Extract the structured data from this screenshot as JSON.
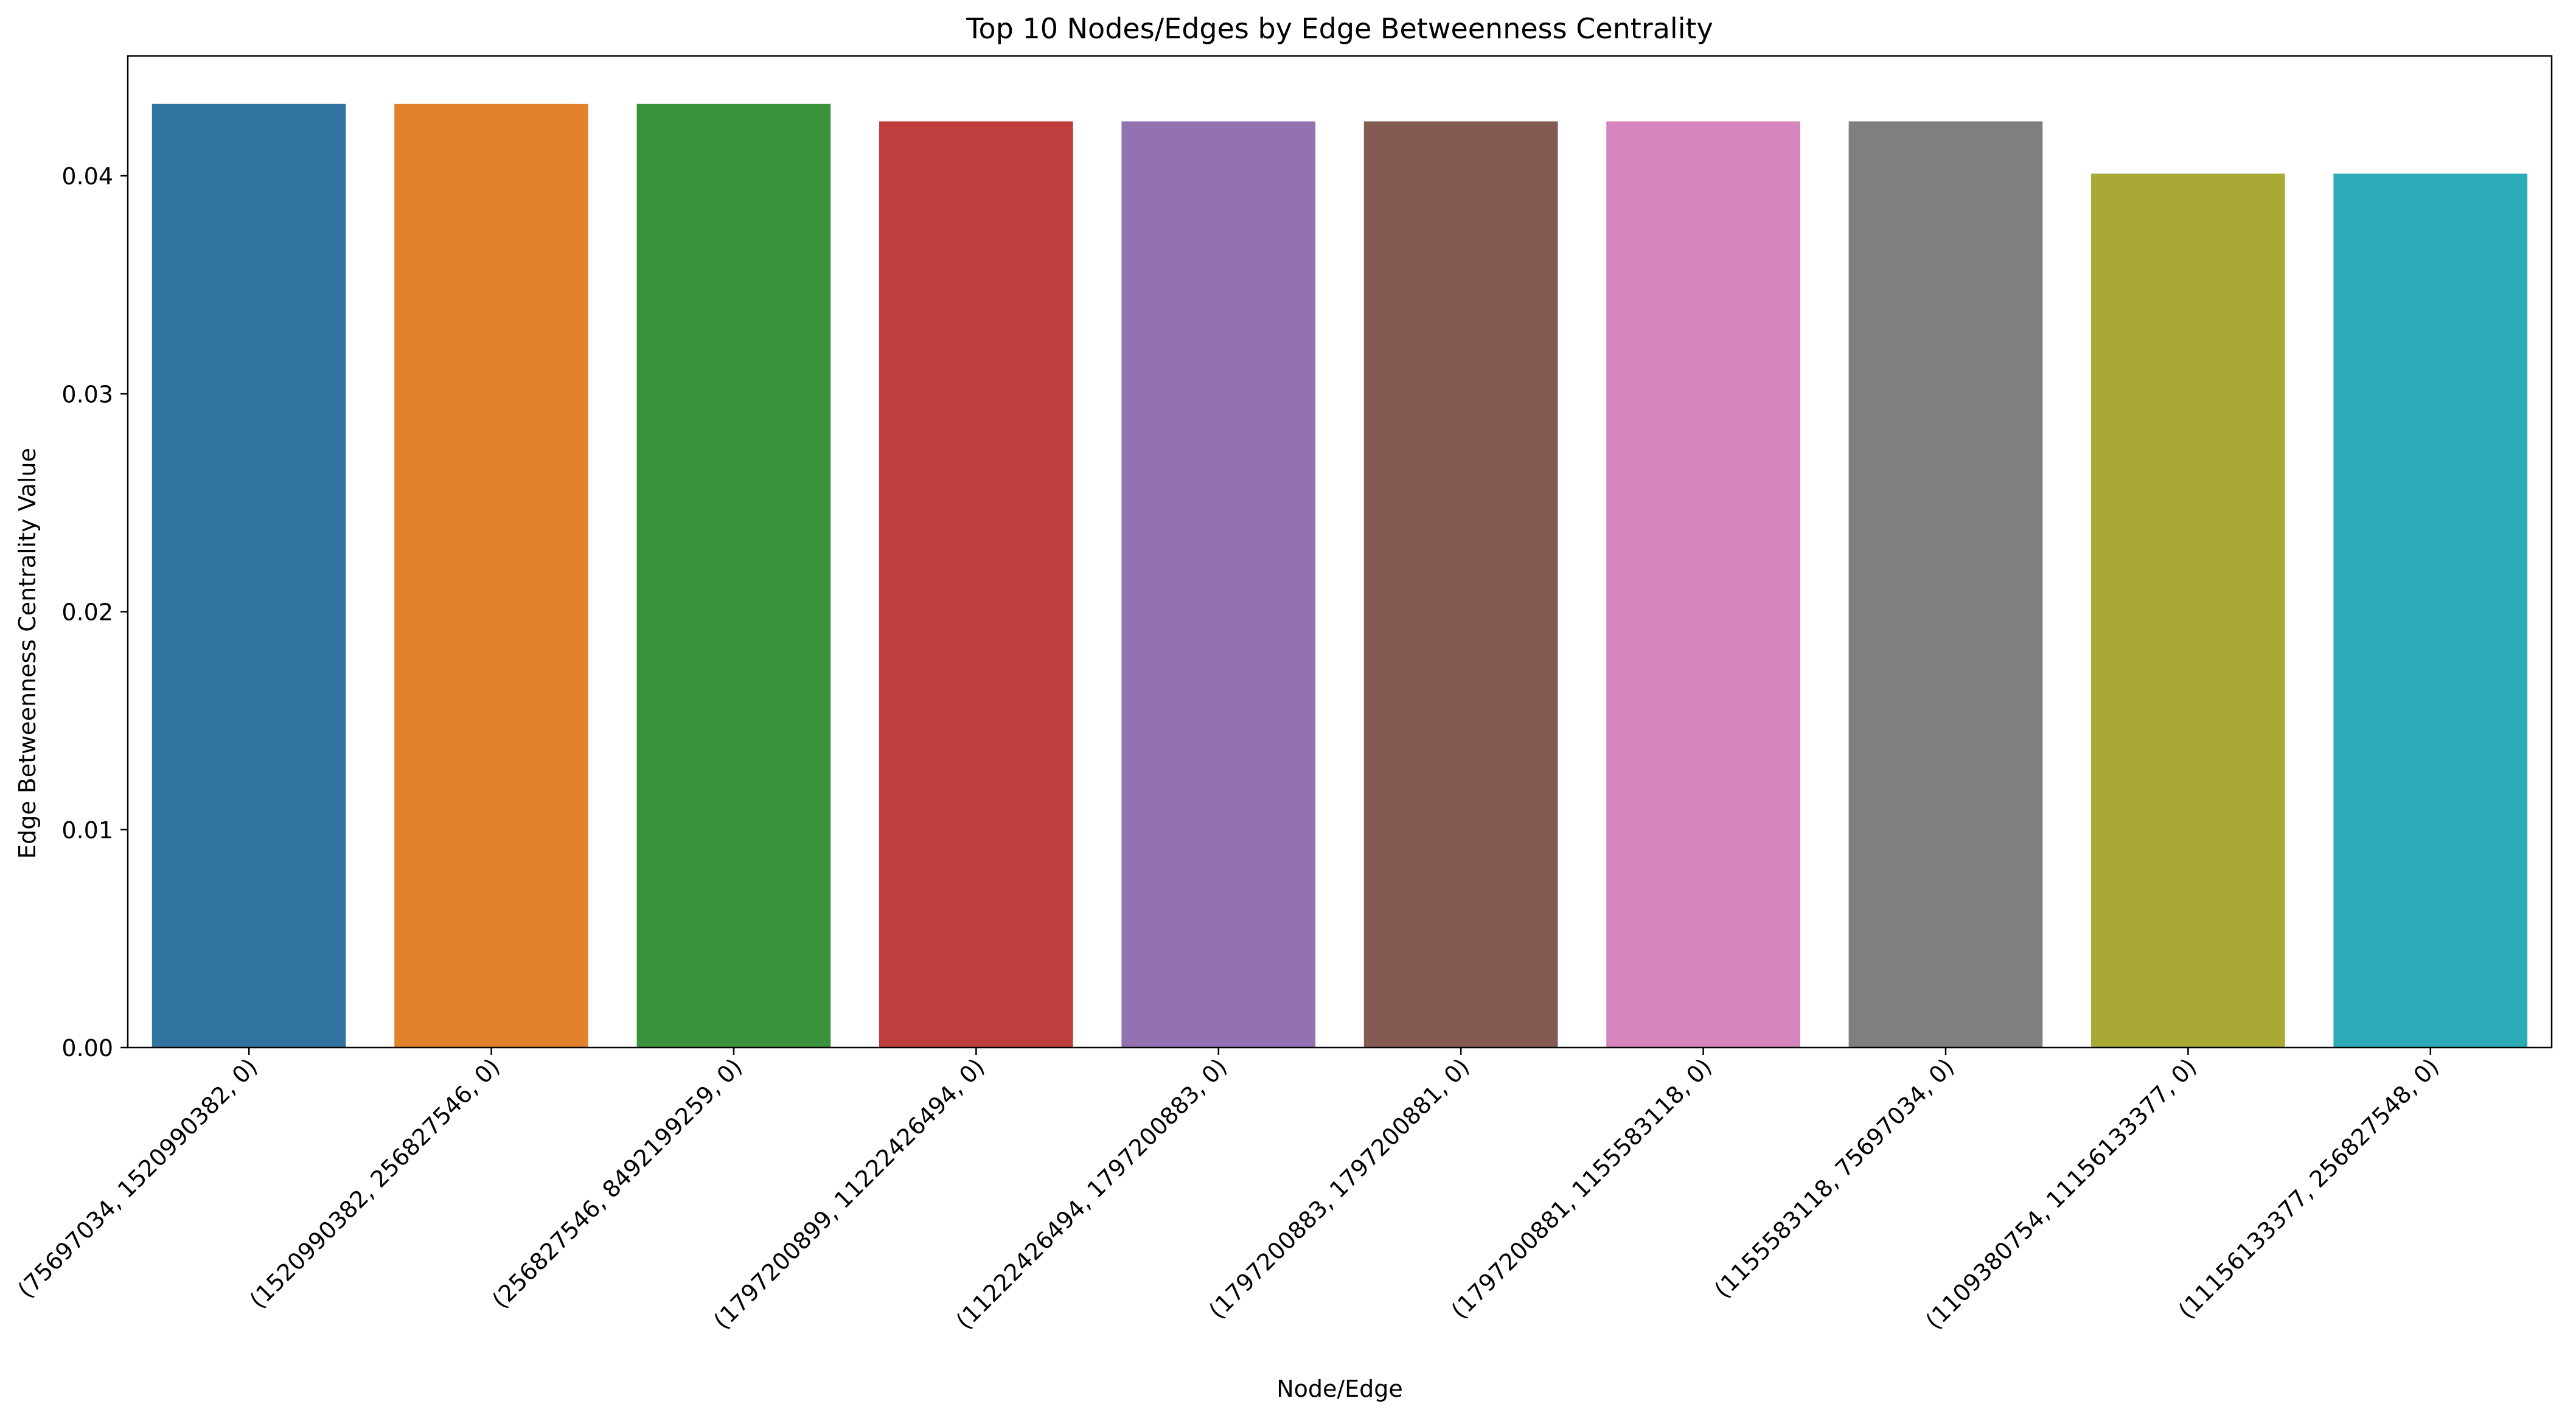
{
  "chart_data": {
    "type": "bar",
    "title": "Top 10 Nodes/Edges by Edge Betweenness Centrality",
    "xlabel": "Node/Edge",
    "ylabel": "Edge Betweenness Centrality Value",
    "ylim": [
      0,
      0.0455
    ],
    "yticks": [
      0.0,
      0.01,
      0.02,
      0.03,
      0.04
    ],
    "ytick_labels": [
      "0.00",
      "0.01",
      "0.02",
      "0.03",
      "0.04"
    ],
    "grid": false,
    "legend": "none",
    "categories": [
      "(75697034, 1520990382, 0)",
      "(1520990382, 256827546, 0)",
      "(256827546, 8492199259, 0)",
      "(1797200899, 11222426494, 0)",
      "(11222426494, 1797200883, 0)",
      "(1797200883, 1797200881, 0)",
      "(1797200881, 1155583118, 0)",
      "(1155583118, 75697034, 0)",
      "(1109380754, 11156133377, 0)",
      "(11156133377, 256827548, 0)"
    ],
    "values": [
      0.0433,
      0.0433,
      0.0433,
      0.0425,
      0.0425,
      0.0425,
      0.0425,
      0.0425,
      0.0401,
      0.0401
    ],
    "colors": [
      "#3274a1",
      "#e1812c",
      "#3a923a",
      "#c03d3e",
      "#9372b2",
      "#845b53",
      "#d684bd",
      "#7f7f7f",
      "#a9aa35",
      "#2eabb8"
    ]
  }
}
